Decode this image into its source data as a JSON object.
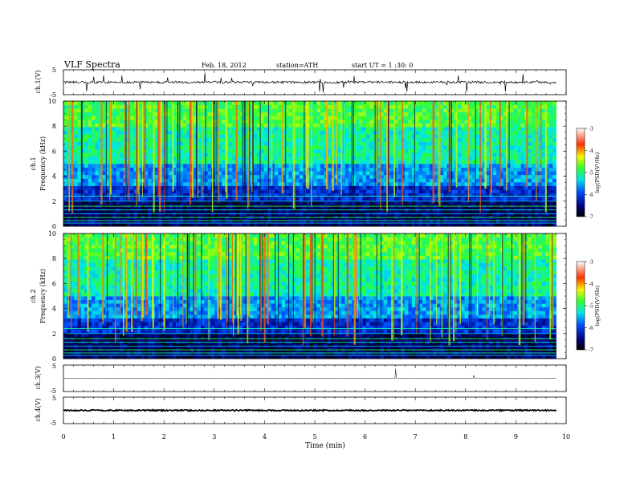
{
  "header": {
    "title": "VLF  Spectra",
    "date": "Feb. 18, 2012",
    "station": "station=ATH",
    "start": "start  UT  =   1  :30: 0"
  },
  "chart_data": [
    {
      "type": "line",
      "panel": "ch1-waveform",
      "ylabel": "ch.1(V)",
      "ylim": [
        -5,
        5
      ],
      "yticks": [
        "5",
        "-5"
      ],
      "xlim": [
        0,
        10
      ],
      "baseline": 0
    },
    {
      "type": "heatmap",
      "panel": "ch1-spectrogram",
      "ylabel": "ch.1",
      "ylabel2": "Frequency  (kHz)",
      "ylim": [
        0,
        10
      ],
      "yticks": [
        "0",
        "2",
        "4",
        "6",
        "8",
        "10"
      ],
      "xlim": [
        0,
        9.8
      ],
      "colorbar": {
        "label": "log(PSD(V²/Hz)",
        "range": [
          -7,
          -3
        ],
        "ticks": [
          "-3",
          "-4",
          "-5",
          "-6",
          "-7"
        ]
      }
    },
    {
      "type": "heatmap",
      "panel": "ch2-spectrogram",
      "ylabel": "ch.2",
      "ylabel2": "Frequency  (kHz)",
      "ylim": [
        0,
        10
      ],
      "yticks": [
        "0",
        "2",
        "4",
        "6",
        "8",
        "10"
      ],
      "xlim": [
        0,
        9.8
      ],
      "colorbar": {
        "label": "log(PSD(V²/Hz)",
        "range": [
          -7,
          -3
        ],
        "ticks": [
          "-3",
          "-4",
          "-5",
          "-6",
          "-7"
        ]
      }
    },
    {
      "type": "line",
      "panel": "ch3-waveform",
      "ylabel": "ch.3(V)",
      "ylim": [
        -5,
        5
      ],
      "yticks": [
        "5",
        "-5"
      ],
      "xlim": [
        0,
        10
      ],
      "baseline": 0
    },
    {
      "type": "line",
      "panel": "ch4-waveform",
      "ylabel": "ch.4(V)",
      "ylim": [
        -5,
        5
      ],
      "yticks": [
        "5",
        "-5"
      ],
      "xlim": [
        0,
        10
      ],
      "baseline": 0
    }
  ],
  "xaxis": {
    "label": "Time  (min)",
    "ticks": [
      "0",
      "1",
      "2",
      "3",
      "4",
      "5",
      "6",
      "7",
      "8",
      "9",
      "10"
    ],
    "range": [
      0,
      10
    ]
  }
}
